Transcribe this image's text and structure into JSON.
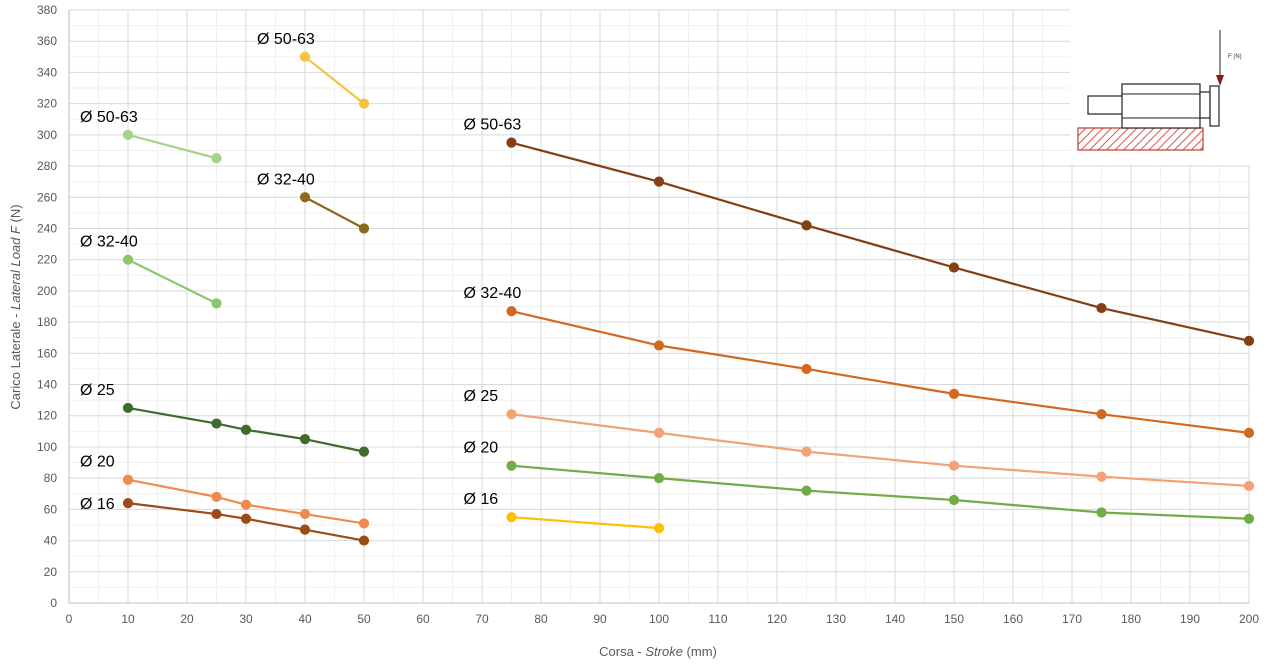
{
  "chart_data": {
    "type": "line",
    "xlabel": "Corsa - ",
    "xlabel_italic": "Stroke",
    "xlabel_unit": " (mm)",
    "ylabel": "Carico Laterale - ",
    "ylabel_italic": "Lateral Load F",
    "ylabel_unit": " (N)",
    "xlim": [
      0,
      200
    ],
    "ylim": [
      0,
      380
    ],
    "x_ticks": [
      0,
      10,
      20,
      30,
      40,
      50,
      60,
      70,
      80,
      90,
      100,
      110,
      120,
      130,
      140,
      150,
      160,
      170,
      180,
      190,
      200
    ],
    "y_ticks": [
      0,
      20,
      40,
      60,
      80,
      100,
      120,
      140,
      160,
      180,
      200,
      220,
      240,
      260,
      280,
      300,
      320,
      340,
      360,
      380
    ],
    "grid": true,
    "legend": "none",
    "inset_label": "F (N)",
    "series": [
      {
        "name": "Ø 50-63",
        "color": "#f5c242",
        "label_anchor": "above-left",
        "x": [
          40,
          50
        ],
        "y": [
          350,
          320
        ]
      },
      {
        "name": "Ø 50-63",
        "color": "#a9d18e",
        "label_anchor": "above-left",
        "x": [
          10,
          25
        ],
        "y": [
          300,
          285
        ]
      },
      {
        "name": "Ø 32-40",
        "color": "#8c6a1a",
        "label_anchor": "above-left",
        "x": [
          40,
          50
        ],
        "y": [
          260,
          240
        ]
      },
      {
        "name": "Ø 32-40",
        "color": "#8dc66b",
        "label_anchor": "above-left",
        "x": [
          10,
          25
        ],
        "y": [
          220,
          192
        ]
      },
      {
        "name": "Ø 25",
        "color": "#3f6b2c",
        "label_anchor": "above-left",
        "x": [
          10,
          25,
          30,
          40,
          50
        ],
        "y": [
          125,
          115,
          111,
          105,
          97
        ]
      },
      {
        "name": "Ø 20",
        "color": "#ee8c4f",
        "label_anchor": "above-left",
        "x": [
          10,
          25,
          30,
          40,
          50
        ],
        "y": [
          79,
          68,
          63,
          57,
          51
        ]
      },
      {
        "name": "Ø 16",
        "color": "#9c4c18",
        "label_anchor": "left",
        "x": [
          10,
          25,
          30,
          40,
          50
        ],
        "y": [
          64,
          57,
          54,
          47,
          40
        ]
      },
      {
        "name": "Ø 50-63",
        "color": "#843f14",
        "label_anchor": "above-left",
        "x": [
          75,
          100,
          125,
          150,
          175,
          200
        ],
        "y": [
          295,
          270,
          242,
          215,
          189,
          168
        ]
      },
      {
        "name": "Ø 32-40",
        "color": "#d4681f",
        "label_anchor": "above-left",
        "x": [
          75,
          100,
          125,
          150,
          175,
          200
        ],
        "y": [
          187,
          165,
          150,
          134,
          121,
          109
        ]
      },
      {
        "name": "Ø 25",
        "color": "#f2a274",
        "label_anchor": "above-left",
        "x": [
          75,
          100,
          125,
          150,
          175,
          200
        ],
        "y": [
          121,
          109,
          97,
          88,
          81,
          75
        ]
      },
      {
        "name": "Ø 20",
        "color": "#70ad47",
        "label_anchor": "above-left",
        "x": [
          75,
          100,
          125,
          150,
          175,
          200
        ],
        "y": [
          88,
          80,
          72,
          66,
          58,
          54
        ]
      },
      {
        "name": "Ø 16",
        "color": "#ffc000",
        "label_anchor": "above-left",
        "x": [
          75,
          100
        ],
        "y": [
          55,
          48
        ]
      }
    ]
  }
}
